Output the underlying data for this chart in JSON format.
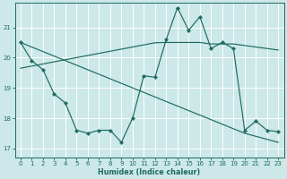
{
  "xlabel": "Humidex (Indice chaleur)",
  "xlim": [
    -0.5,
    23.5
  ],
  "ylim": [
    16.7,
    21.8
  ],
  "yticks": [
    17,
    18,
    19,
    20,
    21
  ],
  "xticks": [
    0,
    1,
    2,
    3,
    4,
    5,
    6,
    7,
    8,
    9,
    10,
    11,
    12,
    13,
    14,
    15,
    16,
    17,
    18,
    19,
    20,
    21,
    22,
    23
  ],
  "bg_color": "#cce8e8",
  "line_color": "#1e6b5e",
  "grid_color": "#ffffff",
  "line_jagged": [
    20.5,
    19.9,
    19.6,
    18.8,
    18.5,
    17.6,
    17.5,
    17.6,
    17.6,
    17.2,
    18.0,
    19.4,
    19.35,
    20.6,
    21.65,
    20.9,
    21.35,
    20.3,
    20.5,
    20.3,
    17.6,
    17.9,
    17.6,
    17.55
  ],
  "line_upper": [
    19.65,
    19.72,
    19.79,
    19.86,
    19.93,
    20.0,
    20.07,
    20.14,
    20.21,
    20.28,
    20.35,
    20.42,
    20.49,
    20.5,
    20.5,
    20.5,
    20.5,
    20.45,
    20.45,
    20.45,
    20.4,
    20.35,
    20.3,
    20.25
  ],
  "line_lower": [
    20.5,
    20.35,
    20.2,
    20.05,
    19.9,
    19.75,
    19.6,
    19.45,
    19.3,
    19.15,
    19.0,
    18.85,
    18.7,
    18.55,
    18.4,
    18.25,
    18.1,
    17.95,
    17.8,
    17.65,
    17.5,
    17.4,
    17.3,
    17.2
  ]
}
